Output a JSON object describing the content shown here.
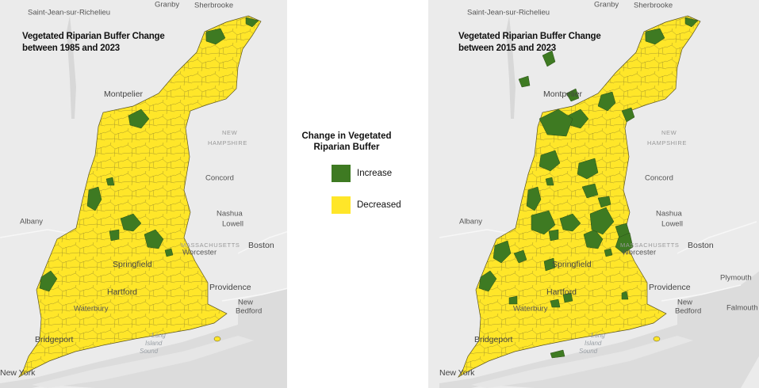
{
  "maps": [
    {
      "title": [
        "Vegetated Riparian Buffer Change",
        "between 1985 and 2023"
      ],
      "places": [
        "Saint-Jean-sur-Richelieu",
        "Granby",
        "Sherbrooke",
        "Montpelier",
        "NEW",
        "HAMPSHIRE",
        "Concord",
        "Albany",
        "Nashua",
        "Lowell",
        "MASSACHUSETTS",
        "Boston",
        "Worcester",
        "Springfield",
        "Hartford",
        "Providence",
        "New",
        "Bedford",
        "Waterbury",
        "Bridgeport",
        "Long",
        "Island",
        "Sound",
        "New York"
      ]
    },
    {
      "title": [
        "Vegetated Riparian Buffer Change",
        "between 2015 and 2023"
      ],
      "places": [
        "Saint-Jean-sur-Richelieu",
        "Granby",
        "Sherbrooke",
        "Montpelier",
        "NEW",
        "HAMPSHIRE",
        "Concord",
        "Albany",
        "Nashua",
        "Lowell",
        "MASSACHUSETTS",
        "Boston",
        "Worcester",
        "Springfield",
        "Hartford",
        "Providence",
        "New",
        "Bedford",
        "Waterbury",
        "Bridgeport",
        "Long",
        "Island",
        "Sound",
        "New York",
        "Plymouth",
        "Falmouth"
      ]
    }
  ],
  "legend": {
    "title": [
      "Change in Vegetated",
      "Riparian Buffer"
    ],
    "items": [
      {
        "label": "Increase",
        "color": "#3e7a22"
      },
      {
        "label": "Decreased",
        "color": "#ffe629"
      }
    ]
  }
}
